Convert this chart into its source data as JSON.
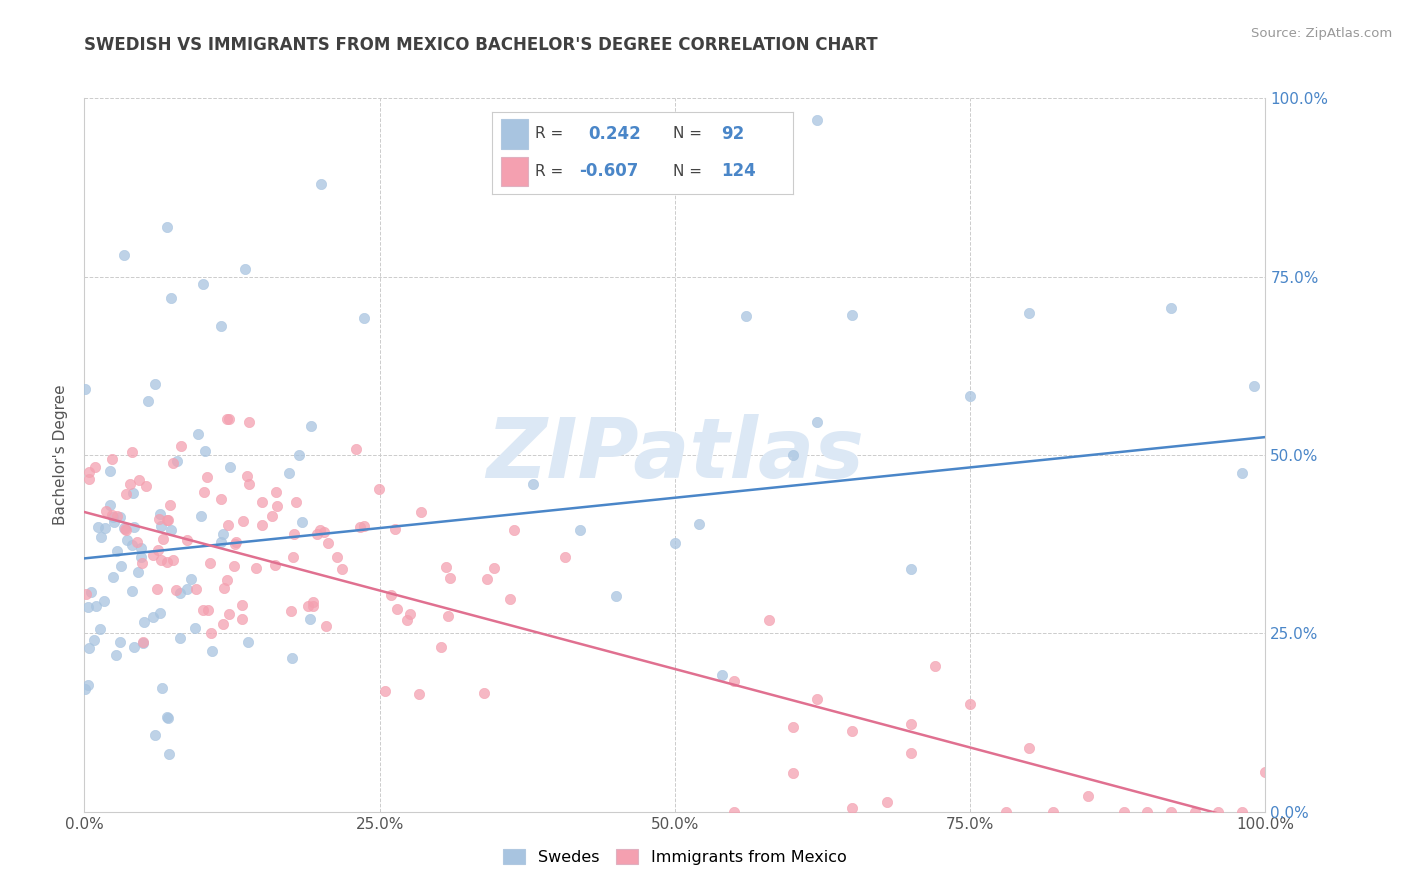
{
  "title": "SWEDISH VS IMMIGRANTS FROM MEXICO BACHELOR'S DEGREE CORRELATION CHART",
  "source": "Source: ZipAtlas.com",
  "ylabel": "Bachelor's Degree",
  "blue_R": 0.242,
  "blue_N": 92,
  "pink_R": -0.607,
  "pink_N": 124,
  "blue_color": "#a8c4e0",
  "pink_color": "#f4a0b0",
  "blue_line_color": "#4a86c8",
  "pink_line_color": "#e07090",
  "title_color": "#404040",
  "watermark_color": "#dce8f5",
  "legend_labels": [
    "Swedes",
    "Immigrants from Mexico"
  ],
  "xmin": 0.0,
  "xmax": 1.0,
  "ymin": 0.0,
  "ymax": 1.0,
  "blue_line_x0": 0.0,
  "blue_line_y0": 0.355,
  "blue_line_x1": 1.0,
  "blue_line_y1": 0.525,
  "pink_line_x0": 0.0,
  "pink_line_y0": 0.42,
  "pink_line_x1": 1.0,
  "pink_line_y1": -0.02,
  "seed": 77
}
